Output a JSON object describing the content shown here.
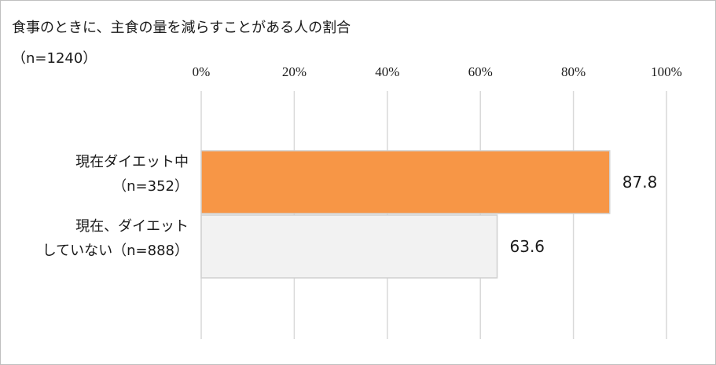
{
  "chart_data": {
    "type": "bar",
    "orientation": "horizontal",
    "title": "食事のときに、主食の量を減らすことがある人の割合",
    "subtitle": "（n=1240）",
    "xlim": [
      0,
      100
    ],
    "ticks": [
      0,
      20,
      40,
      60,
      80,
      100
    ],
    "tick_labels": [
      "0%",
      "20%",
      "40%",
      "60%",
      "80%",
      "100%"
    ],
    "grid": true,
    "categories": [
      {
        "lines": [
          "現在ダイエット中",
          "（n=352）"
        ]
      },
      {
        "lines": [
          "現在、ダイエット",
          "していない（n=888）"
        ]
      }
    ],
    "values": [
      87.8,
      63.6
    ],
    "data_labels": [
      "87.8",
      "63.6"
    ],
    "colors": [
      "#f79646",
      "#f2f2f2"
    ]
  }
}
